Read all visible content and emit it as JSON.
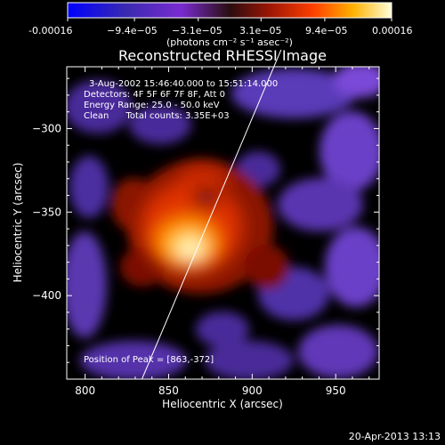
{
  "colorbar": {
    "tick_labels": [
      "-0.00016",
      "−9.4e−05",
      "−3.1e−05",
      "3.1e−05",
      "9.4e−05",
      "0.00016"
    ],
    "tick_values": [
      -0.00016,
      -9.4e-05,
      -3.1e-05,
      3.1e-05,
      9.4e-05,
      0.00016
    ],
    "range": [
      -0.00016,
      0.00016
    ],
    "units_label": "(photons cm⁻² s⁻¹ asec⁻²)"
  },
  "chart_data": {
    "type": "heatmap",
    "title": "Reconstructed RHESSI Image",
    "xlabel": "Heliocentric X (arcsec)",
    "ylabel": "Heliocentric Y (arcsec)",
    "xlim": [
      789,
      976
    ],
    "ylim": [
      -450,
      -263
    ],
    "xticks": [
      800,
      850,
      900,
      950
    ],
    "xtick_labels": [
      "800",
      "850",
      "900",
      "950"
    ],
    "yticks": [
      -300,
      -350,
      -400
    ],
    "ytick_labels": [
      "−300",
      "−350",
      "−400"
    ],
    "peak": [
      863,
      -372
    ],
    "limb_line": [
      [
        834,
        -450
      ],
      [
        913,
        -263
      ]
    ],
    "annotations": {
      "time_range": "3-Aug-2002 15:46:40.000 to 15:51:14.000",
      "detectors": "Detectors: 4F 5F 6F 7F 8F, Att 0",
      "energy": "Energy Range: 25.0 - 50.0 keV",
      "method": "Clean      Total counts: 3.35E+03",
      "peak_label": "Position of Peak = [863,-372]"
    }
  },
  "footer": {
    "timestamp": "20-Apr-2013 13:13"
  }
}
